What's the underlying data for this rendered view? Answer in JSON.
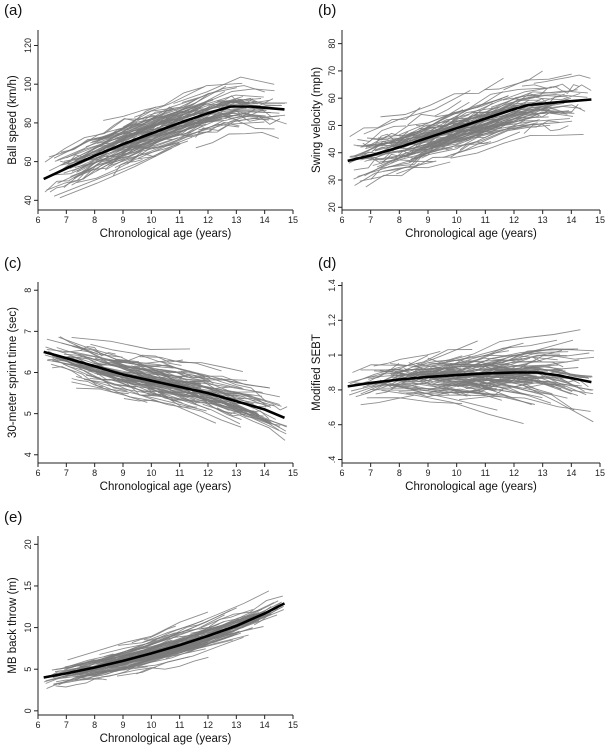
{
  "chart_data": [
    {
      "type": "line",
      "panel_label": "(a)",
      "xlabel": "Chronological age (years)",
      "ylabel": "Ball speed (km/h)",
      "xlim": [
        6,
        15
      ],
      "ylim": [
        35,
        128
      ],
      "x_ticks": [
        6,
        7,
        8,
        9,
        10,
        11,
        12,
        13,
        14,
        15
      ],
      "y_ticks": [
        40,
        60,
        80,
        100,
        120
      ],
      "grid": false,
      "mean_curve": {
        "x": [
          6.2,
          7,
          8,
          9,
          10,
          11,
          12,
          12.8,
          13.5,
          14.7
        ],
        "y": [
          51,
          56.5,
          63,
          69,
          74.5,
          80,
          85,
          88.5,
          88.5,
          87
        ]
      },
      "individual_trajectories": {
        "count": 150,
        "x_range": [
          6.2,
          14.8
        ],
        "y_spread": 13,
        "slope_spread": 0.5,
        "seed": 11
      }
    },
    {
      "type": "line",
      "panel_label": "(b)",
      "xlabel": "Chronological age (years)",
      "ylabel": "Swing velocity (mph)",
      "xlim": [
        6,
        15
      ],
      "ylim": [
        19,
        85
      ],
      "x_ticks": [
        6,
        7,
        8,
        9,
        10,
        11,
        12,
        13,
        14,
        15
      ],
      "y_ticks": [
        20,
        30,
        40,
        50,
        60,
        70,
        80
      ],
      "grid": false,
      "mean_curve": {
        "x": [
          6.2,
          7,
          8,
          9,
          10,
          11,
          12,
          12.5,
          13.5,
          14.7
        ],
        "y": [
          37,
          39,
          42,
          45.5,
          49,
          52.5,
          56,
          57.5,
          58.5,
          59.5
        ]
      },
      "individual_trajectories": {
        "count": 150,
        "x_range": [
          6.2,
          14.8
        ],
        "y_spread": 10,
        "slope_spread": 0.6,
        "seed": 23
      }
    },
    {
      "type": "line",
      "panel_label": "(c)",
      "xlabel": "Chronological age (years)",
      "ylabel": "30-meter sprint time (sec)",
      "xlim": [
        6,
        15
      ],
      "ylim": [
        3.8,
        8.2
      ],
      "x_ticks": [
        6,
        7,
        8,
        9,
        10,
        11,
        12,
        13,
        14,
        15
      ],
      "y_ticks": [
        4,
        5,
        6,
        7,
        8
      ],
      "grid": false,
      "mean_curve": {
        "x": [
          6.2,
          7,
          8,
          9,
          10,
          11,
          12,
          13,
          14,
          14.7
        ],
        "y": [
          6.5,
          6.35,
          6.15,
          5.95,
          5.8,
          5.65,
          5.5,
          5.3,
          5.1,
          4.9
        ]
      },
      "individual_trajectories": {
        "count": 150,
        "x_range": [
          6.2,
          14.8
        ],
        "y_spread": 0.55,
        "slope_spread": 0.12,
        "seed": 37
      }
    },
    {
      "type": "line",
      "panel_label": "(d)",
      "xlabel": "Chronological age (years)",
      "ylabel": "Modified SEBT",
      "xlim": [
        6,
        15
      ],
      "ylim": [
        0.38,
        1.42
      ],
      "x_ticks": [
        6,
        7,
        8,
        9,
        10,
        11,
        12,
        13,
        14,
        15
      ],
      "y_ticks": [
        0.4,
        0.6,
        0.8,
        1.0,
        1.2,
        1.4
      ],
      "y_tick_labels": [
        ".4",
        ".6",
        ".8",
        "1",
        "1.2",
        "1.4"
      ],
      "grid": false,
      "mean_curve": {
        "x": [
          6.2,
          7,
          8,
          9,
          10,
          11,
          12,
          12.8,
          13.5,
          14.7
        ],
        "y": [
          0.82,
          0.84,
          0.86,
          0.875,
          0.885,
          0.895,
          0.9,
          0.9,
          0.885,
          0.845
        ]
      },
      "individual_trajectories": {
        "count": 150,
        "x_range": [
          6.2,
          14.8
        ],
        "y_spread": 0.12,
        "slope_spread": 0.05,
        "seed": 53
      }
    },
    {
      "type": "line",
      "panel_label": "(e)",
      "xlabel": "Chronological age (years)",
      "ylabel": "MB back throw (m)",
      "xlim": [
        6,
        15
      ],
      "ylim": [
        -0.5,
        21
      ],
      "x_ticks": [
        6,
        7,
        8,
        9,
        10,
        11,
        12,
        13,
        14,
        15
      ],
      "y_ticks": [
        0,
        5,
        10,
        15,
        20
      ],
      "grid": false,
      "mean_curve": {
        "x": [
          6.2,
          7,
          8,
          9,
          10,
          11,
          12,
          13,
          14,
          14.7
        ],
        "y": [
          4,
          4.5,
          5.2,
          6,
          6.9,
          7.9,
          9,
          10.2,
          11.7,
          12.9
        ]
      },
      "individual_trajectories": {
        "count": 150,
        "x_range": [
          6.2,
          14.8
        ],
        "y_spread": 1.6,
        "slope_spread": 0.35,
        "seed": 71
      }
    }
  ]
}
